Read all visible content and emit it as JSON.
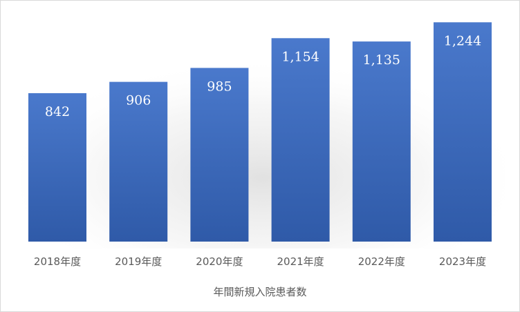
{
  "chart_data": {
    "type": "bar",
    "categories": [
      "2018年度",
      "2019年度",
      "2020年度",
      "2021年度",
      "2022年度",
      "2023年度"
    ],
    "values": [
      842,
      906,
      985,
      1154,
      1135,
      1244
    ],
    "value_labels": [
      "842",
      "906",
      "985",
      "1,154",
      "1,135",
      "1,244"
    ],
    "title": "",
    "xlabel": "年間新規入院患者数",
    "ylabel": "",
    "ylim": [
      0,
      1300
    ],
    "grid": false,
    "legend": "none",
    "colors": {
      "bar_top": "#4a79cc",
      "bar_bottom": "#2f5aa8",
      "label": "#ffffff",
      "text": "#595959",
      "frame": "#d9d9d9"
    }
  }
}
